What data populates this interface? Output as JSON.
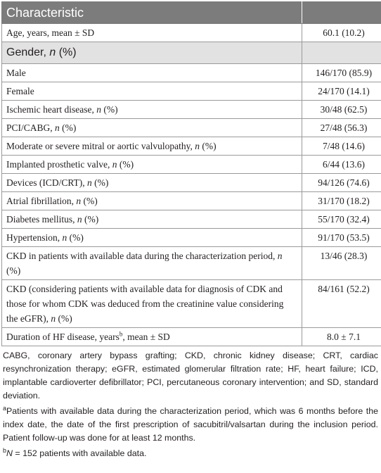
{
  "table": {
    "header": {
      "col1": "Characteristic",
      "col2": ""
    },
    "age_row": {
      "label": "Age, years, mean ± SD",
      "value": "60.1 (10.2)"
    },
    "gender_section": {
      "label_a": "Gender, ",
      "label_n": "n",
      "label_b": " (%)"
    },
    "gender_rows": [
      {
        "label": "Male",
        "value": "146/170 (85.9)"
      },
      {
        "label": "Female",
        "value": "24/170 (14.1)"
      }
    ],
    "rows": [
      {
        "label": "Ischemic heart disease, ",
        "suffix": " (%)",
        "value": "30/48 (62.5)"
      },
      {
        "label": "PCI/CABG, ",
        "suffix": " (%)",
        "value": "27/48 (56.3)"
      },
      {
        "label": "Moderate or severe mitral or aortic valvulopathy, ",
        "suffix": " (%)",
        "value": "7/48 (14.6)"
      },
      {
        "label": "Implanted prosthetic valve, ",
        "suffix": " (%)",
        "value": "6/44 (13.6)"
      },
      {
        "label": "Devices (ICD/CRT), ",
        "suffix": " (%)",
        "value": "94/126 (74.6)"
      },
      {
        "label": "Atrial fibrillation, ",
        "suffix": " (%)",
        "value": "31/170 (18.2)"
      },
      {
        "label": "Diabetes mellitus, ",
        "suffix": " (%)",
        "value": "55/170 (32.4)"
      },
      {
        "label": "Hypertension, ",
        "suffix": " (%)",
        "value": "91/170 (53.5)"
      },
      {
        "label": "CKD in patients with available data during the characterization period, ",
        "suffix": " (%)",
        "value": "13/46 (28.3)"
      },
      {
        "label": "CKD (considering patients with available data for diagnosis of CDK and those for whom CDK was deduced from the creatinine value considering the eGFR), ",
        "suffix": " (%)",
        "value": "84/161 (52.2)"
      }
    ],
    "n_symbol": "n",
    "duration_row": {
      "label_a": "Duration of HF disease, years",
      "sup": "b",
      "label_b": ", mean ± SD",
      "value": "8.0 ± 7.1"
    }
  },
  "notes": {
    "abbrev": "CABG, coronary artery bypass grafting; CKD, chronic kidney disease; CRT, cardiac resynchronization therapy; eGFR, estimated glomerular filtration rate; HF, heart failure; ICD, implantable cardioverter defibrillator; PCI, percutaneous coronary intervention; and SD, standard deviation.",
    "a_mark": "a",
    "a_text": "Patients with available data during the characterization period, which was 6 months before the index date, the date of the first prescription of sacubitril/valsartan during the inclusion period. Patient follow-up was done for at least 12 months.",
    "b_mark": "b",
    "b_n": "N",
    "b_text": " = 152 patients with available data."
  },
  "colors": {
    "header_bg": "#7c7c7c",
    "section_bg": "#e2e2e2",
    "border": "#9a9a9a",
    "text": "#231f20"
  }
}
